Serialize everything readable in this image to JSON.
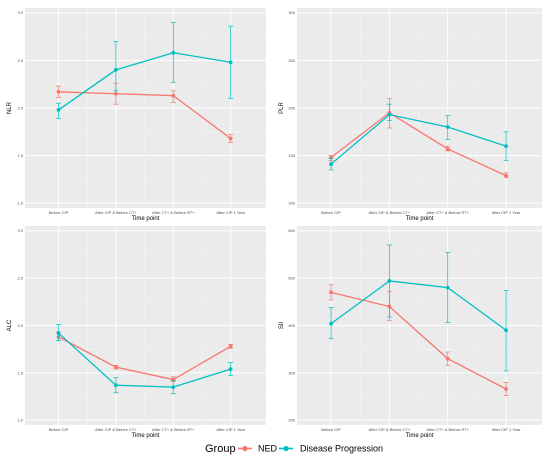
{
  "legend": {
    "title": "Group",
    "entries": [
      {
        "label": "NED",
        "color": "#F8766D"
      },
      {
        "label": "Disease Progression",
        "color": "#00BFC4"
      }
    ]
  },
  "chart_data": [
    {
      "type": "line",
      "ylabel": "NLR",
      "xlabel": "Time point",
      "categories": [
        "Before CIP",
        "After CIP & Before CT+",
        "After CT+ & Before RT+",
        "After CIP 1 Year"
      ],
      "ylim": [
        0.95,
        3.05
      ],
      "yticks": [
        1.0,
        1.5,
        2.0,
        2.5,
        3.0
      ],
      "yticklabels": [
        "1.0",
        "1.5",
        "2.0",
        "2.5",
        "3.0"
      ],
      "grid": true,
      "series": [
        {
          "name": "NED",
          "color": "#F8766D",
          "values": [
            2.17,
            2.15,
            2.13,
            1.68
          ],
          "lower": [
            2.11,
            2.04,
            2.06,
            1.64
          ],
          "upper": [
            2.23,
            2.26,
            2.18,
            1.72
          ]
        },
        {
          "name": "Disease Progression",
          "color": "#00BFC4",
          "values": [
            1.98,
            2.4,
            2.58,
            2.48
          ],
          "lower": [
            1.89,
            2.18,
            2.27,
            2.1
          ],
          "upper": [
            2.05,
            2.7,
            2.9,
            2.86
          ]
        }
      ]
    },
    {
      "type": "line",
      "ylabel": "PLR",
      "xlabel": "Time point",
      "categories": [
        "Before CIP",
        "After CIP & Before CT+",
        "After CT+ & Before RT+",
        "After CIP 1 Year"
      ],
      "ylim": [
        0.95,
        3.05
      ],
      "yticks": [
        1.0,
        1.5,
        2.0,
        2.5,
        3.0
      ],
      "yticklabels": [
        "100",
        "150",
        "200",
        "250",
        "300"
      ],
      "grid": true,
      "series": [
        {
          "name": "NED",
          "color": "#F8766D",
          "values": [
            1.48,
            1.95,
            1.57,
            1.29
          ],
          "lower": [
            1.45,
            1.79,
            1.55,
            1.27
          ],
          "upper": [
            1.5,
            2.1,
            1.6,
            1.32
          ]
        },
        {
          "name": "Disease Progression",
          "color": "#00BFC4",
          "values": [
            1.41,
            1.93,
            1.8,
            1.6
          ],
          "lower": [
            1.35,
            1.87,
            1.67,
            1.45
          ],
          "upper": [
            1.47,
            2.04,
            1.92,
            1.75
          ]
        }
      ]
    },
    {
      "type": "line",
      "ylabel": "ALC",
      "xlabel": "Time point",
      "categories": [
        "Before CIP",
        "After CIP & Before CT+",
        "After CT+ & Before RT+",
        "After CIP 1 Year"
      ],
      "ylim": [
        0.95,
        3.05
      ],
      "yticks": [
        1.0,
        1.5,
        2.0,
        2.5,
        3.0
      ],
      "yticklabels": [
        "1.0",
        "1.5",
        "2.0",
        "2.5",
        "3.0"
      ],
      "grid": true,
      "series": [
        {
          "name": "NED",
          "color": "#F8766D",
          "values": [
            1.88,
            1.56,
            1.43,
            1.78
          ],
          "lower": [
            1.84,
            1.54,
            1.41,
            1.76
          ],
          "upper": [
            1.93,
            1.58,
            1.46,
            1.8
          ]
        },
        {
          "name": "Disease Progression",
          "color": "#00BFC4",
          "values": [
            1.92,
            1.37,
            1.35,
            1.54
          ],
          "lower": [
            1.84,
            1.29,
            1.28,
            1.47
          ],
          "upper": [
            2.01,
            1.45,
            1.42,
            1.61
          ]
        }
      ]
    },
    {
      "type": "line",
      "ylabel": "SII",
      "xlabel": "Time point",
      "categories": [
        "Before CIP",
        "After CIP & Before CT+",
        "After CT+ & Before RT+",
        "After CIP 1 Year"
      ],
      "ylim": [
        0.95,
        3.05
      ],
      "yticks": [
        1.0,
        1.5,
        2.0,
        2.5,
        3.0
      ],
      "yticklabels": [
        "200",
        "300",
        "400",
        "500",
        "600"
      ],
      "grid": true,
      "series": [
        {
          "name": "NED",
          "color": "#F8766D",
          "values": [
            2.35,
            2.2,
            1.65,
            1.33
          ],
          "lower": [
            2.27,
            2.05,
            1.58,
            1.26
          ],
          "upper": [
            2.43,
            2.36,
            1.72,
            1.4
          ]
        },
        {
          "name": "Disease Progression",
          "color": "#00BFC4",
          "values": [
            2.02,
            2.47,
            2.4,
            1.95
          ],
          "lower": [
            1.86,
            2.09,
            2.03,
            1.52
          ],
          "upper": [
            2.19,
            2.85,
            2.77,
            2.37
          ]
        }
      ]
    }
  ]
}
